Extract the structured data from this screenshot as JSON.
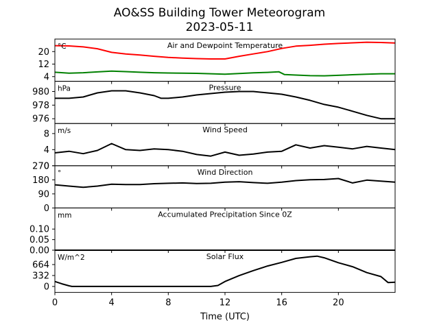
{
  "chart_data": {
    "title": [
      "AO&SS Building Tower Meteorogram",
      "2023-05-11"
    ],
    "type": "line",
    "xlabel": "Time (UTC)",
    "xlim": [
      0,
      24
    ],
    "xticks": [
      0,
      4,
      8,
      12,
      16,
      20
    ],
    "grid": false,
    "panels": [
      {
        "title": "Air and Dewpoint Temperature",
        "unit": "°C",
        "ylim": [
          1,
          28
        ],
        "yticks": [
          4,
          12,
          20
        ],
        "series": [
          {
            "color": "#ff0000",
            "x": [
              0,
              1,
              2,
              3,
              4,
              5,
              6,
              7,
              8,
              9,
              10,
              11,
              12,
              13,
              14,
              15,
              16,
              17,
              18,
              19,
              20,
              21,
              22,
              23,
              24
            ],
            "y": [
              23.8,
              23.6,
              23,
              21.8,
              19.5,
              18.5,
              17.8,
              17,
              16.3,
              15.8,
              15.5,
              15.3,
              15.3,
              17,
              18.5,
              20,
              22,
              23.5,
              24,
              24.7,
              25.2,
              25.6,
              26,
              25.8,
              25.5
            ]
          },
          {
            "color": "#008000",
            "x": [
              0,
              1,
              2,
              3,
              4,
              5,
              6,
              7,
              8,
              9,
              10,
              11,
              12,
              13,
              14,
              15,
              15.8,
              16.2,
              17,
              18,
              19,
              20,
              21,
              22,
              23,
              24
            ],
            "y": [
              6.8,
              6.2,
              6.5,
              7,
              7.5,
              7.2,
              6.8,
              6.5,
              6.3,
              6.2,
              6.1,
              5.8,
              5.5,
              6,
              6.4,
              6.7,
              7.1,
              5.3,
              5,
              4.6,
              4.5,
              4.8,
              5.2,
              5.5,
              5.8,
              5.8
            ]
          }
        ]
      },
      {
        "title": "Pressure",
        "unit": "hPa",
        "ylim": [
          975.3,
          981.5
        ],
        "yticks": [
          976,
          978,
          980
        ],
        "series": [
          {
            "color": "#000000",
            "x": [
              0,
              1,
              2,
              3,
              4,
              5,
              6,
              7,
              7.5,
              8,
              9,
              10,
              11,
              12,
              13,
              14,
              15,
              16,
              17,
              18,
              19,
              20,
              21,
              22,
              23,
              24
            ],
            "y": [
              979,
              979,
              979.2,
              979.8,
              980.1,
              980.1,
              979.8,
              979.4,
              979,
              979,
              979.2,
              979.5,
              979.7,
              979.9,
              980,
              980,
              979.8,
              979.6,
              979.2,
              978.7,
              978.1,
              977.7,
              977.1,
              976.5,
              976,
              976
            ]
          }
        ]
      },
      {
        "title": "Wind Speed",
        "unit": "m/s",
        "ylim": [
          0,
          10.5
        ],
        "yticks": [
          0,
          4,
          8
        ],
        "series": [
          {
            "color": "#000000",
            "x": [
              0,
              1,
              2,
              3,
              4,
              5,
              6,
              7,
              8,
              9,
              10,
              11,
              12,
              13,
              14,
              15,
              16,
              17,
              18,
              19,
              20,
              21,
              22,
              23,
              24
            ],
            "y": [
              3.2,
              3.6,
              3,
              3.8,
              5.5,
              4,
              3.8,
              4.2,
              4,
              3.6,
              2.8,
              2.4,
              3.4,
              2.6,
              2.9,
              3.4,
              3.6,
              5.2,
              4.4,
              5,
              4.6,
              4.2,
              4.8,
              4.4,
              4
            ]
          }
        ]
      },
      {
        "title": "Wind Direction",
        "unit": "°",
        "ylim": [
          0,
          270
        ],
        "yticks": [
          0,
          90,
          180,
          270
        ],
        "series": [
          {
            "color": "#000000",
            "x": [
              0,
              1,
              2,
              3,
              4,
              5,
              6,
              7,
              8,
              9,
              10,
              11,
              12,
              13,
              14,
              15,
              16,
              17,
              18,
              19,
              20,
              21,
              22,
              23,
              24
            ],
            "y": [
              148,
              140,
              132,
              140,
              152,
              150,
              150,
              155,
              158,
              160,
              156,
              158,
              165,
              168,
              162,
              158,
              165,
              175,
              180,
              182,
              188,
              160,
              178,
              172,
              165
            ]
          }
        ]
      },
      {
        "title": "Accumulated Precipitation Since 0Z",
        "unit": "mm",
        "ylim": [
          0,
          0.2
        ],
        "yticks": [
          0.0,
          0.05,
          0.1
        ],
        "ytick_labels": [
          "0.00",
          "0.05",
          "0.10"
        ],
        "series": [
          {
            "color": "#000000",
            "x": [
              0,
              24
            ],
            "y": [
              0,
              0
            ]
          }
        ]
      },
      {
        "title": "Solar Flux",
        "unit": "W/m^2",
        "ylim": [
          -180,
          1100
        ],
        "yticks": [
          0,
          332,
          664
        ],
        "series": [
          {
            "color": "#000000",
            "x": [
              0,
              0.5,
              1,
              1.2,
              2,
              4,
              6,
              8,
              10,
              11,
              11.5,
              12,
              13,
              14,
              15,
              16,
              17,
              18,
              18.5,
              19,
              20,
              21,
              22,
              23,
              23.5,
              24
            ],
            "y": [
              150,
              80,
              20,
              0,
              0,
              0,
              0,
              0,
              0,
              0,
              30,
              150,
              330,
              480,
              620,
              730,
              850,
              900,
              920,
              870,
              720,
              600,
              420,
              300,
              120,
              130
            ]
          }
        ]
      }
    ]
  }
}
